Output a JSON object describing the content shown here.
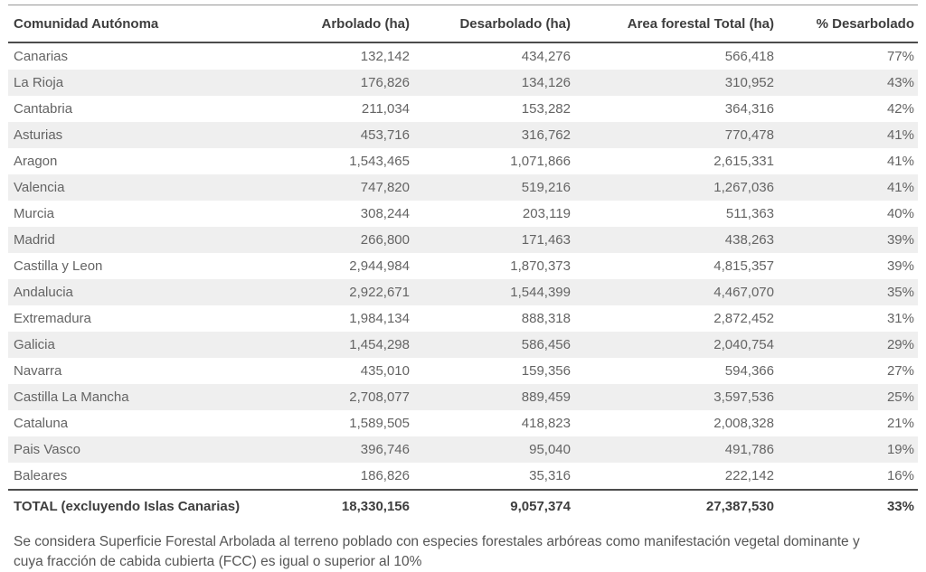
{
  "table": {
    "columns": [
      "Comunidad Autónoma",
      "Arbolado (ha)",
      "Desarbolado (ha)",
      "Area forestal Total (ha)",
      "% Desarbolado"
    ],
    "rows": [
      {
        "name": "Canarias",
        "values": [
          "132,142",
          "434,276",
          "566,418",
          "77%"
        ]
      },
      {
        "name": "La Rioja",
        "values": [
          "176,826",
          "134,126",
          "310,952",
          "43%"
        ]
      },
      {
        "name": "Cantabria",
        "values": [
          "211,034",
          "153,282",
          "364,316",
          "42%"
        ]
      },
      {
        "name": "Asturias",
        "values": [
          "453,716",
          "316,762",
          "770,478",
          "41%"
        ]
      },
      {
        "name": "Aragon",
        "values": [
          "1,543,465",
          "1,071,866",
          "2,615,331",
          "41%"
        ]
      },
      {
        "name": "Valencia",
        "values": [
          "747,820",
          "519,216",
          "1,267,036",
          "41%"
        ]
      },
      {
        "name": "Murcia",
        "values": [
          "308,244",
          "203,119",
          "511,363",
          "40%"
        ]
      },
      {
        "name": "Madrid",
        "values": [
          "266,800",
          "171,463",
          "438,263",
          "39%"
        ]
      },
      {
        "name": "Castilla y Leon",
        "values": [
          "2,944,984",
          "1,870,373",
          "4,815,357",
          "39%"
        ]
      },
      {
        "name": "Andalucia",
        "values": [
          "2,922,671",
          "1,544,399",
          "4,467,070",
          "35%"
        ]
      },
      {
        "name": "Extremadura",
        "values": [
          "1,984,134",
          "888,318",
          "2,872,452",
          "31%"
        ]
      },
      {
        "name": "Galicia",
        "values": [
          "1,454,298",
          "586,456",
          "2,040,754",
          "29%"
        ]
      },
      {
        "name": "Navarra",
        "values": [
          "435,010",
          "159,356",
          "594,366",
          "27%"
        ]
      },
      {
        "name": "Castilla La Mancha",
        "values": [
          "2,708,077",
          "889,459",
          "3,597,536",
          "25%"
        ]
      },
      {
        "name": "Cataluna",
        "values": [
          "1,589,505",
          "418,823",
          "2,008,328",
          "21%"
        ]
      },
      {
        "name": "Pais Vasco",
        "values": [
          "396,746",
          "95,040",
          "491,786",
          "19%"
        ]
      },
      {
        "name": "Baleares",
        "values": [
          "186,826",
          "35,316",
          "222,142",
          "16%"
        ]
      }
    ],
    "total_row": {
      "name": "TOTAL (excluyendo Islas Canarias)",
      "values": [
        "18,330,156",
        "9,057,374",
        "27,387,530",
        "33%"
      ]
    }
  },
  "footnote": "Se considera Superficie Forestal Arbolada al terreno poblado con especies forestales arbóreas como manifestación vegetal dominante y cuya fracción de cabida cubierta (FCC) es igual o superior al 10%",
  "colors": {
    "stripe": "#efefef",
    "header_text": "#3e3e3e",
    "body_text": "#646464",
    "rule_dark": "#4c4c4c",
    "rule_light": "#989898"
  },
  "chart_data": {
    "type": "table",
    "title": "",
    "columns": [
      "Comunidad Autónoma",
      "Arbolado (ha)",
      "Desarbolado (ha)",
      "Area forestal Total (ha)",
      "% Desarbolado"
    ],
    "rows": [
      [
        "Canarias",
        132142,
        434276,
        566418,
        77
      ],
      [
        "La Rioja",
        176826,
        134126,
        310952,
        43
      ],
      [
        "Cantabria",
        211034,
        153282,
        364316,
        42
      ],
      [
        "Asturias",
        453716,
        316762,
        770478,
        41
      ],
      [
        "Aragon",
        1543465,
        1071866,
        2615331,
        41
      ],
      [
        "Valencia",
        747820,
        519216,
        1267036,
        41
      ],
      [
        "Murcia",
        308244,
        203119,
        511363,
        40
      ],
      [
        "Madrid",
        266800,
        171463,
        438263,
        39
      ],
      [
        "Castilla y Leon",
        2944984,
        1870373,
        4815357,
        39
      ],
      [
        "Andalucia",
        2922671,
        1544399,
        4467070,
        35
      ],
      [
        "Extremadura",
        1984134,
        888318,
        2872452,
        31
      ],
      [
        "Galicia",
        1454298,
        586456,
        2040754,
        29
      ],
      [
        "Navarra",
        435010,
        159356,
        594366,
        27
      ],
      [
        "Castilla La Mancha",
        2708077,
        889459,
        3597536,
        25
      ],
      [
        "Cataluna",
        1589505,
        418823,
        2008328,
        21
      ],
      [
        "Pais Vasco",
        396746,
        95040,
        491786,
        19
      ],
      [
        "Baleares",
        186826,
        35316,
        222142,
        16
      ]
    ],
    "total": [
      "TOTAL (excluyendo Islas Canarias)",
      18330156,
      9057374,
      27387530,
      33
    ],
    "units": "ha",
    "sort": "descending by % Desarbolado"
  }
}
